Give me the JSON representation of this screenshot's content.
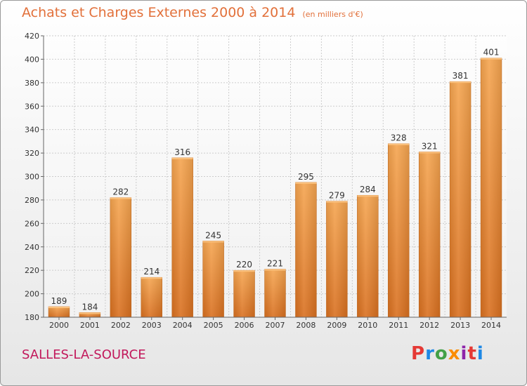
{
  "header": {
    "title": "Achats et Charges Externes 2000 à 2014",
    "subtitle": "(en milliers d'€)"
  },
  "footer": {
    "commune": "SALLES-LA-SOURCE",
    "logo_text": "Proxiti"
  },
  "colors": {
    "bar_top": "#f5a550",
    "bar_bottom": "#d97020",
    "title": "#e2703a",
    "commune": "#c2185b",
    "grid": "#cccccc",
    "logo": [
      "#e53935",
      "#1e88e5",
      "#43a047",
      "#fb8c00",
      "#8e24aa",
      "#e53935",
      "#1e88e5"
    ]
  },
  "chart_data": {
    "type": "bar",
    "title": "Achats et Charges Externes 2000 à 2014",
    "subtitle": "(en milliers d'€)",
    "categories": [
      "2000",
      "2001",
      "2002",
      "2003",
      "2004",
      "2005",
      "2006",
      "2007",
      "2008",
      "2009",
      "2010",
      "2011",
      "2012",
      "2013",
      "2014"
    ],
    "values": [
      189,
      184,
      282,
      214,
      316,
      245,
      220,
      221,
      295,
      279,
      284,
      328,
      321,
      381,
      401
    ],
    "ylim": [
      180,
      420
    ],
    "yticks": [
      180,
      200,
      220,
      240,
      260,
      280,
      300,
      320,
      340,
      360,
      380,
      400,
      420
    ],
    "grid": true,
    "xlabel": "",
    "ylabel": ""
  }
}
